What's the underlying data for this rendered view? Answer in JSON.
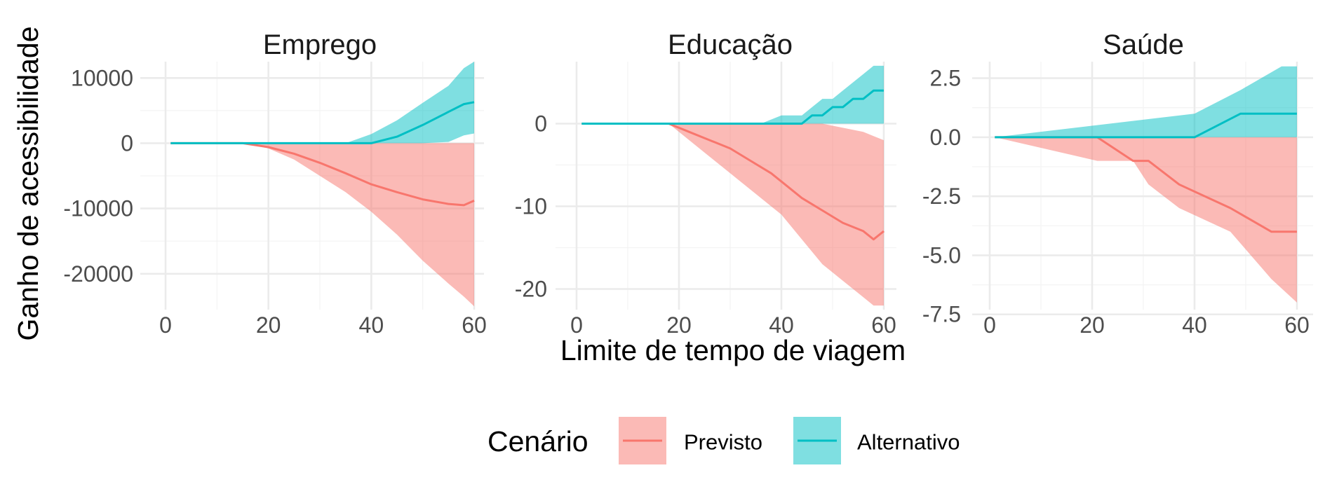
{
  "chart_data": {
    "type": "area",
    "ylabel": "Ganho de acessibilidade",
    "xlabel": "Limite de tempo de viagem",
    "grid": true,
    "legend": {
      "title": "Cenário",
      "position": "bottom",
      "entries": [
        {
          "name": "Previsto",
          "line_color": "#F8766D",
          "fill_color": "#F8766D"
        },
        {
          "name": "Alternativo",
          "line_color": "#00BFC4",
          "fill_color": "#00BFC4"
        }
      ]
    },
    "panels": [
      {
        "title": "Emprego",
        "xlim": [
          0,
          60
        ],
        "ylim": [
          -25500,
          12500
        ],
        "x_ticks": [
          0,
          20,
          40,
          60
        ],
        "y_ticks": [
          10000,
          0,
          -10000,
          -20000
        ],
        "y_tick_labels": [
          "10000",
          "0",
          "-10000",
          "-20000"
        ],
        "series": [
          {
            "name": "Previsto",
            "x": [
              1,
              15,
              20,
              25,
              30,
              35,
              40,
              45,
              50,
              55,
              58,
              60
            ],
            "median": [
              0,
              0,
              -600,
              -1600,
              -3000,
              -4600,
              -6300,
              -7500,
              -8600,
              -9300,
              -9500,
              -8800
            ],
            "lower": [
              0,
              0,
              -800,
              -2500,
              -5000,
              -7500,
              -10500,
              -14000,
              -18000,
              -21500,
              -23500,
              -25000
            ],
            "upper": [
              0,
              0,
              0,
              0,
              0,
              0,
              0,
              0,
              0,
              0,
              0,
              0
            ]
          },
          {
            "name": "Alternativo",
            "x": [
              1,
              15,
              20,
              25,
              30,
              35,
              40,
              45,
              50,
              55,
              58,
              60
            ],
            "median": [
              0,
              0,
              0,
              0,
              0,
              0,
              0,
              1000,
              2800,
              4800,
              6000,
              6300
            ],
            "lower": [
              0,
              0,
              0,
              0,
              0,
              0,
              0,
              0,
              0,
              200,
              1200,
              1500
            ],
            "upper": [
              0,
              0,
              0,
              0,
              0,
              0,
              1400,
              3500,
              6200,
              8800,
              11500,
              12500
            ]
          }
        ]
      },
      {
        "title": "Educação",
        "xlim": [
          0,
          60
        ],
        "ylim": [
          -22.5,
          7.5
        ],
        "x_ticks": [
          0,
          20,
          40,
          60
        ],
        "y_ticks": [
          0,
          -10,
          -20
        ],
        "y_tick_labels": [
          "0",
          "-10",
          "-20"
        ],
        "series": [
          {
            "name": "Previsto",
            "x": [
              1,
              18,
              20,
              22,
              26,
              30,
              34,
              38,
              40,
              44,
              48,
              52,
              56,
              58,
              60
            ],
            "median": [
              0,
              0,
              -0.5,
              -1,
              -2,
              -3,
              -4.5,
              -6,
              -7,
              -9,
              -10.5,
              -12,
              -13,
              -14,
              -13
            ],
            "lower": [
              0,
              0,
              -1,
              -2,
              -4,
              -6,
              -8,
              -10,
              -11,
              -14,
              -17,
              -19,
              -21,
              -22,
              -22
            ],
            "upper": [
              0,
              0,
              0,
              0,
              0,
              0,
              0,
              0,
              0,
              0,
              0,
              -0.5,
              -1,
              -1.5,
              -2
            ]
          },
          {
            "name": "Alternativo",
            "x": [
              1,
              36,
              40,
              44,
              46,
              48,
              50,
              52,
              54,
              56,
              58,
              60
            ],
            "median": [
              0,
              0,
              0,
              0,
              1,
              1,
              2,
              2,
              3,
              3,
              4,
              4
            ],
            "lower": [
              0,
              0,
              0,
              0,
              0,
              0,
              0,
              0,
              0,
              0,
              0,
              0
            ],
            "upper": [
              0,
              0,
              1,
              1,
              2,
              3,
              3,
              4,
              5,
              6,
              7,
              7
            ]
          }
        ]
      },
      {
        "title": "Saúde",
        "xlim": [
          0,
          60
        ],
        "ylim": [
          -7.3,
          3.2
        ],
        "x_ticks": [
          0,
          20,
          40,
          60
        ],
        "y_ticks": [
          2.5,
          0.0,
          -2.5,
          -5.0,
          -7.5
        ],
        "y_tick_labels": [
          "2.5",
          "0.0",
          "-2.5",
          "-5.0",
          "-7.5"
        ],
        "series": [
          {
            "name": "Previsto",
            "x": [
              1,
              21,
              28,
              31,
              37,
              47,
              55,
              60
            ],
            "median": [
              0,
              0,
              -1,
              -1,
              -2,
              -3,
              -4,
              -4
            ],
            "lower": [
              0,
              -1,
              -1,
              -2,
              -3,
              -4,
              -6,
              -7
            ],
            "upper": [
              0,
              0,
              0,
              0,
              0,
              0,
              0,
              0
            ]
          },
          {
            "name": "Alternativo",
            "x": [
              1,
              40,
              49,
              57,
              60
            ],
            "median": [
              0,
              0,
              1,
              1,
              1
            ],
            "lower": [
              0,
              0,
              0,
              0,
              0
            ],
            "upper": [
              0,
              1,
              2,
              3,
              3
            ]
          }
        ]
      }
    ]
  }
}
